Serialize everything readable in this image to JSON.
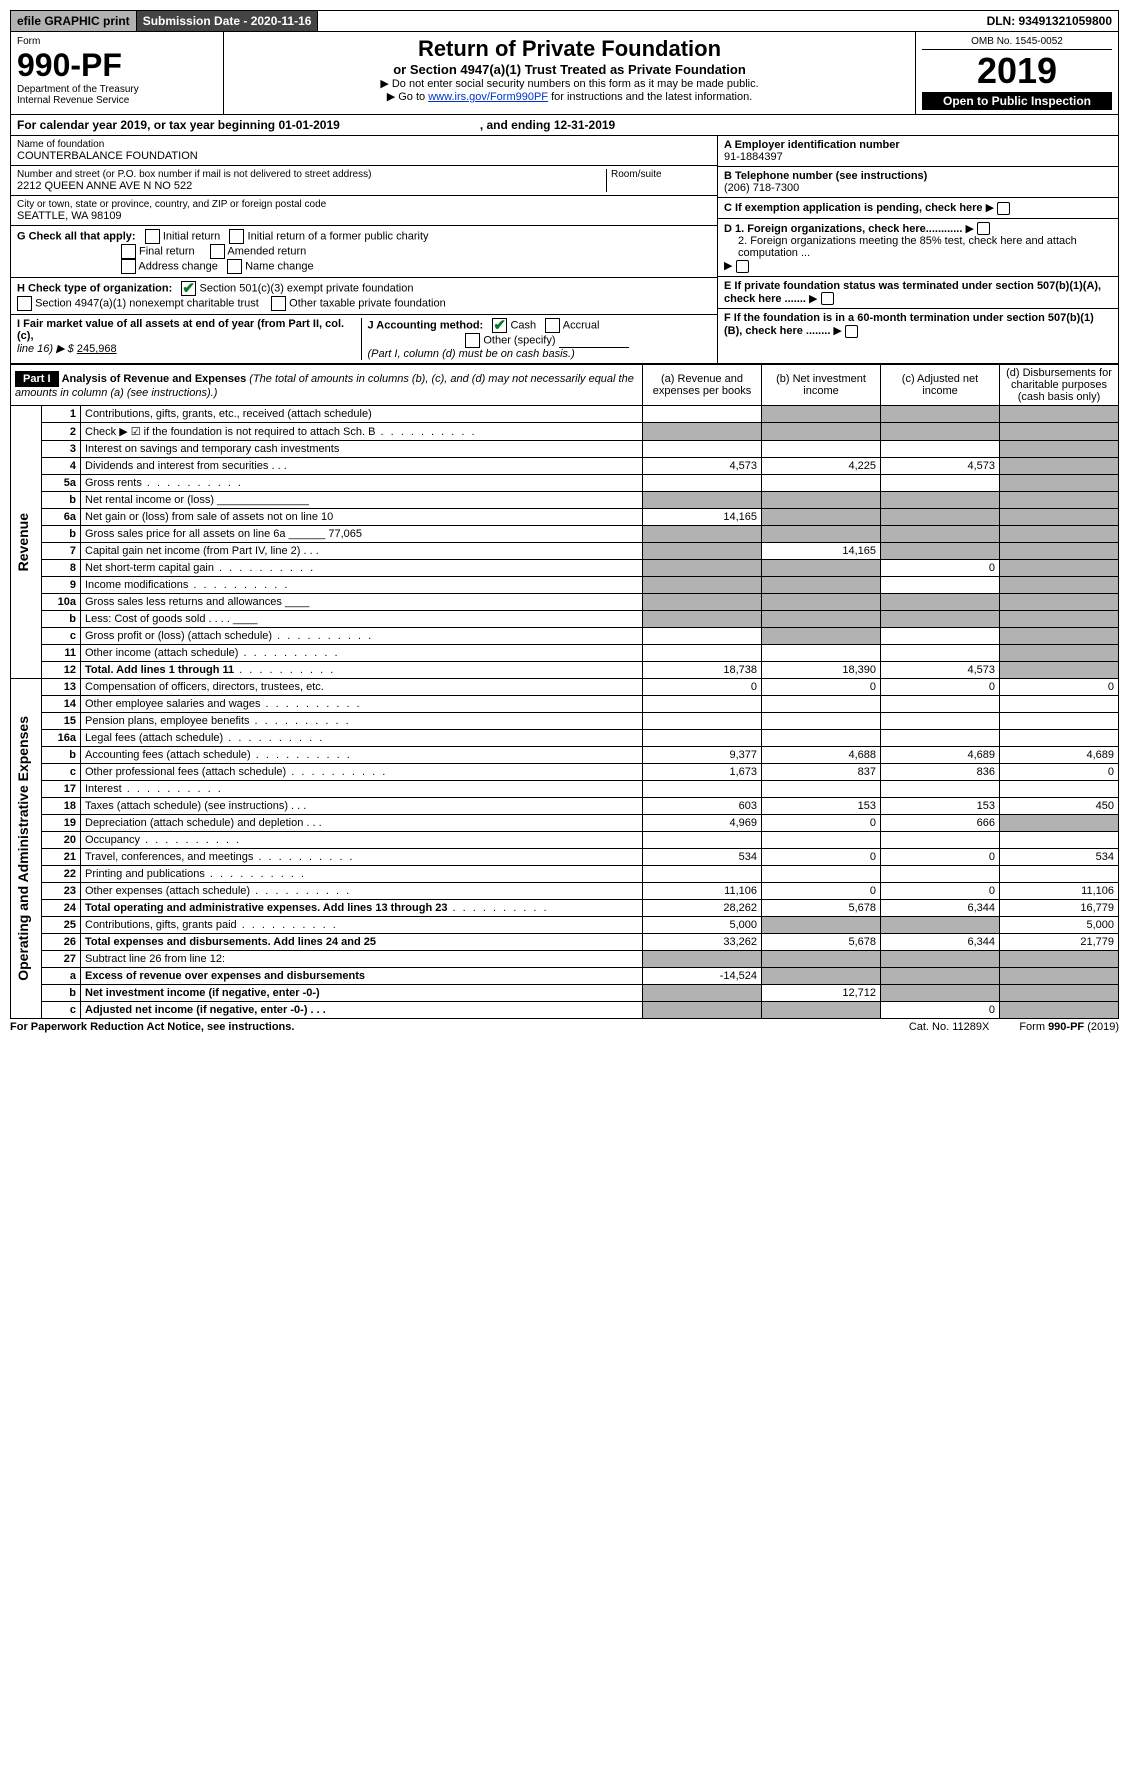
{
  "header": {
    "efile": "efile GRAPHIC print",
    "submission_label": "Submission Date - 2020-11-16",
    "dln": "DLN: 93491321059800",
    "omb": "OMB No. 1545-0052",
    "form_label": "Form",
    "form_no": "990-PF",
    "dept": "Department of the Treasury",
    "irs": "Internal Revenue Service",
    "title": "Return of Private Foundation",
    "subtitle": "or Section 4947(a)(1) Trust Treated as Private Foundation",
    "instr1": "▶ Do not enter social security numbers on this form as it may be made public.",
    "instr2_pre": "▶ Go to ",
    "instr2_link": "www.irs.gov/Form990PF",
    "instr2_post": " for instructions and the latest information.",
    "year": "2019",
    "open": "Open to Public Inspection"
  },
  "calendar": {
    "text_l": "For calendar year 2019, or tax year beginning 01-01-2019",
    "text_r": ", and ending 12-31-2019"
  },
  "ident": {
    "name_label": "Name of foundation",
    "name": "COUNTERBALANCE FOUNDATION",
    "addr_label": "Number and street (or P.O. box number if mail is not delivered to street address)",
    "addr": "2212 QUEEN ANNE AVE N NO 522",
    "room_label": "Room/suite",
    "city_label": "City or town, state or province, country, and ZIP or foreign postal code",
    "city": "SEATTLE, WA  98109",
    "A_label": "A Employer identification number",
    "A_val": "91-1884397",
    "B_label": "B Telephone number (see instructions)",
    "B_val": "(206) 718-7300",
    "C_label": "C If exemption application is pending, check here",
    "D1": "D 1. Foreign organizations, check here............",
    "D2": "2. Foreign organizations meeting the 85% test, check here and attach computation ...",
    "E": "E  If private foundation status was terminated under section 507(b)(1)(A), check here .......",
    "F": "F  If the foundation is in a 60-month termination under section 507(b)(1)(B), check here ........"
  },
  "G": {
    "label": "G Check all that apply:",
    "opts": [
      "Initial return",
      "Initial return of a former public charity",
      "Final return",
      "Amended return",
      "Address change",
      "Name change"
    ]
  },
  "H": {
    "label": "H Check type of organization:",
    "opt1": "Section 501(c)(3) exempt private foundation",
    "opt2": "Section 4947(a)(1) nonexempt charitable trust",
    "opt3": "Other taxable private foundation"
  },
  "I": {
    "label": "I Fair market value of all assets at end of year (from Part II, col. (c),",
    "line": "line 16) ▶ $",
    "val": "245,968"
  },
  "J": {
    "label": "J Accounting method:",
    "cash": "Cash",
    "accrual": "Accrual",
    "other": "Other (specify)",
    "note": "(Part I, column (d) must be on cash basis.)"
  },
  "part1": {
    "bar": "Part I",
    "title": "Analysis of Revenue and Expenses",
    "title2": " (The total of amounts in columns (b), (c), and (d) may not necessarily equal the amounts in column (a) (see instructions).)",
    "col_a": "(a)   Revenue and expenses per books",
    "col_b": "(b)  Net investment income",
    "col_c": "(c)  Adjusted net income",
    "col_d": "(d)  Disbursements for charitable purposes (cash basis only)",
    "vlabel_rev": "Revenue",
    "vlabel_exp": "Operating and Administrative Expenses"
  },
  "rows": [
    {
      "n": "1",
      "d": "Contributions, gifts, grants, etc., received (attach schedule)",
      "a": "",
      "b": "",
      "c": "",
      "dd": "",
      "agrey": false,
      "bgrey": true,
      "cgrey": true,
      "dgrey": true
    },
    {
      "n": "2",
      "d": "Check ▶ ☑ if the foundation is not required to attach Sch. B",
      "a": "",
      "b": "",
      "c": "",
      "dd": "",
      "agrey": true,
      "bgrey": true,
      "cgrey": true,
      "dgrey": true,
      "dots": true
    },
    {
      "n": "3",
      "d": "Interest on savings and temporary cash investments",
      "a": "",
      "b": "",
      "c": "",
      "dd": "",
      "agrey": false,
      "bgrey": false,
      "cgrey": false,
      "dgrey": true
    },
    {
      "n": "4",
      "d": "Dividends and interest from securities   .   .   .",
      "a": "4,573",
      "b": "4,225",
      "c": "4,573",
      "dd": "",
      "agrey": false,
      "bgrey": false,
      "cgrey": false,
      "dgrey": true
    },
    {
      "n": "5a",
      "d": "Gross rents",
      "a": "",
      "b": "",
      "c": "",
      "dd": "",
      "agrey": false,
      "bgrey": false,
      "cgrey": false,
      "dgrey": true,
      "dots": true
    },
    {
      "n": "b",
      "d": "Net rental income or (loss)  _______________",
      "a": "",
      "b": "",
      "c": "",
      "dd": "",
      "agrey": true,
      "bgrey": true,
      "cgrey": true,
      "dgrey": true
    },
    {
      "n": "6a",
      "d": "Net gain or (loss) from sale of assets not on line 10",
      "a": "14,165",
      "b": "",
      "c": "",
      "dd": "",
      "agrey": false,
      "bgrey": true,
      "cgrey": true,
      "dgrey": true
    },
    {
      "n": "b",
      "d": "Gross sales price for all assets on line 6a ______ 77,065",
      "a": "",
      "b": "",
      "c": "",
      "dd": "",
      "agrey": true,
      "bgrey": true,
      "cgrey": true,
      "dgrey": true
    },
    {
      "n": "7",
      "d": "Capital gain net income (from Part IV, line 2)   .   .   .",
      "a": "",
      "b": "14,165",
      "c": "",
      "dd": "",
      "agrey": true,
      "bgrey": false,
      "cgrey": true,
      "dgrey": true
    },
    {
      "n": "8",
      "d": "Net short-term capital gain",
      "a": "",
      "b": "",
      "c": "0",
      "dd": "",
      "agrey": true,
      "bgrey": true,
      "cgrey": false,
      "dgrey": true,
      "dots": true
    },
    {
      "n": "9",
      "d": "Income modifications",
      "a": "",
      "b": "",
      "c": "",
      "dd": "",
      "agrey": true,
      "bgrey": true,
      "cgrey": false,
      "dgrey": true,
      "dots": true
    },
    {
      "n": "10a",
      "d": "Gross sales less returns and allowances  ____",
      "a": "",
      "b": "",
      "c": "",
      "dd": "",
      "agrey": true,
      "bgrey": true,
      "cgrey": true,
      "dgrey": true
    },
    {
      "n": "b",
      "d": "Less: Cost of goods sold       .   .   .   .   ____",
      "a": "",
      "b": "",
      "c": "",
      "dd": "",
      "agrey": true,
      "bgrey": true,
      "cgrey": true,
      "dgrey": true
    },
    {
      "n": "c",
      "d": "Gross profit or (loss) (attach schedule)",
      "a": "",
      "b": "",
      "c": "",
      "dd": "",
      "agrey": false,
      "bgrey": true,
      "cgrey": false,
      "dgrey": true,
      "dots": true
    },
    {
      "n": "11",
      "d": "Other income (attach schedule)",
      "a": "",
      "b": "",
      "c": "",
      "dd": "",
      "agrey": false,
      "bgrey": false,
      "cgrey": false,
      "dgrey": true,
      "dots": true
    },
    {
      "n": "12",
      "d": "Total. Add lines 1 through 11",
      "a": "18,738",
      "b": "18,390",
      "c": "4,573",
      "dd": "",
      "bold": true,
      "agrey": false,
      "bgrey": false,
      "cgrey": false,
      "dgrey": true,
      "dots": true
    },
    {
      "n": "13",
      "d": "Compensation of officers, directors, trustees, etc.",
      "a": "0",
      "b": "0",
      "c": "0",
      "dd": "0"
    },
    {
      "n": "14",
      "d": "Other employee salaries and wages",
      "dots": true
    },
    {
      "n": "15",
      "d": "Pension plans, employee benefits",
      "dots": true
    },
    {
      "n": "16a",
      "d": "Legal fees (attach schedule)",
      "dots": true
    },
    {
      "n": "b",
      "d": "Accounting fees (attach schedule)",
      "a": "9,377",
      "b": "4,688",
      "c": "4,689",
      "dd": "4,689",
      "dots": true
    },
    {
      "n": "c",
      "d": "Other professional fees (attach schedule)",
      "a": "1,673",
      "b": "837",
      "c": "836",
      "dd": "0",
      "dots": true
    },
    {
      "n": "17",
      "d": "Interest",
      "dots": true
    },
    {
      "n": "18",
      "d": "Taxes (attach schedule) (see instructions)   .   .   .",
      "a": "603",
      "b": "153",
      "c": "153",
      "dd": "450"
    },
    {
      "n": "19",
      "d": "Depreciation (attach schedule) and depletion   .   .   .",
      "a": "4,969",
      "b": "0",
      "c": "666",
      "dd": "",
      "dgrey": true
    },
    {
      "n": "20",
      "d": "Occupancy",
      "dots": true
    },
    {
      "n": "21",
      "d": "Travel, conferences, and meetings",
      "a": "534",
      "b": "0",
      "c": "0",
      "dd": "534",
      "dots": true
    },
    {
      "n": "22",
      "d": "Printing and publications",
      "dots": true
    },
    {
      "n": "23",
      "d": "Other expenses (attach schedule)",
      "a": "11,106",
      "b": "0",
      "c": "0",
      "dd": "11,106",
      "dots": true
    },
    {
      "n": "24",
      "d": "Total operating and administrative expenses. Add lines 13 through 23",
      "a": "28,262",
      "b": "5,678",
      "c": "6,344",
      "dd": "16,779",
      "bold": true,
      "dots": true
    },
    {
      "n": "25",
      "d": "Contributions, gifts, grants paid",
      "a": "5,000",
      "b": "",
      "c": "",
      "dd": "5,000",
      "bgrey": true,
      "cgrey": true,
      "dots": true
    },
    {
      "n": "26",
      "d": "Total expenses and disbursements. Add lines 24 and 25",
      "a": "33,262",
      "b": "5,678",
      "c": "6,344",
      "dd": "21,779",
      "bold": true
    },
    {
      "n": "27",
      "d": "Subtract line 26 from line 12:",
      "agrey": true,
      "bgrey": true,
      "cgrey": true,
      "dgrey": true
    },
    {
      "n": "a",
      "d": "Excess of revenue over expenses and disbursements",
      "a": "-14,524",
      "bold": true,
      "bgrey": true,
      "cgrey": true,
      "dgrey": true
    },
    {
      "n": "b",
      "d": "Net investment income (if negative, enter -0-)",
      "b": "12,712",
      "bold": true,
      "agrey": true,
      "cgrey": true,
      "dgrey": true
    },
    {
      "n": "c",
      "d": "Adjusted net income (if negative, enter -0-)   .   .   .",
      "c": "0",
      "bold": true,
      "agrey": true,
      "bgrey": true,
      "dgrey": true
    }
  ],
  "footer": {
    "l": "For Paperwork Reduction Act Notice, see instructions.",
    "m": "Cat. No. 11289X",
    "r": "Form 990-PF (2019)"
  }
}
